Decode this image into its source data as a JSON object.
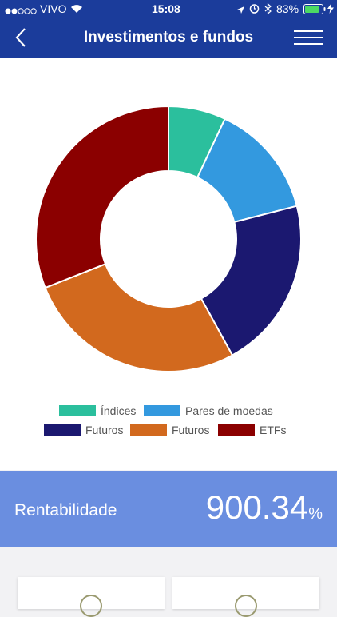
{
  "status_bar": {
    "signal_icon": "signal-dots-icon",
    "carrier": "VIVO",
    "wifi_icon": "wifi-icon",
    "time": "15:08",
    "location_icon": "location-arrow-icon",
    "alarm_icon": "alarm-icon",
    "bluetooth_icon": "bluetooth-icon",
    "battery_percent": "83%",
    "battery_level": 0.83,
    "charging_icon": "charging-bolt-icon"
  },
  "nav": {
    "title": "Investimentos e fundos",
    "back_icon": "chevron-left-icon",
    "menu_icon": "hamburger-menu-icon",
    "background": "#1b3c9b"
  },
  "chart_data": {
    "type": "pie",
    "donut": true,
    "series": [
      {
        "name": "Índices",
        "value": 7,
        "color": "#2bbf9d"
      },
      {
        "name": "Pares de moedas",
        "value": 14,
        "color": "#3399df"
      },
      {
        "name": "Futuros",
        "value": 21,
        "color": "#1b1870"
      },
      {
        "name": "Futuros",
        "value": 27,
        "color": "#d2691e"
      },
      {
        "name": "ETFs",
        "value": 31,
        "color": "#8b0000"
      }
    ],
    "legend_position": "bottom"
  },
  "summary": {
    "label": "Rentabilidade",
    "value": "900.34",
    "unit": "%",
    "background": "#6a8ee0"
  }
}
